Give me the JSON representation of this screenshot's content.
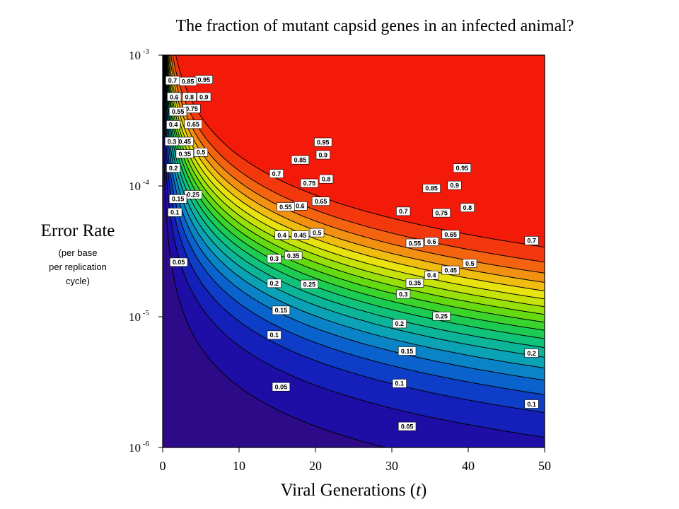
{
  "chart_data": {
    "type": "contour",
    "title": "The fraction of mutant capsid genes in an infected animal?",
    "xlabel_main": "Viral Generations (",
    "xlabel_var": "t",
    "xlabel_end": ")",
    "ylabel": "Error Rate",
    "ylabel_sub": "(per base\nper replication\ncycle)",
    "xlim": [
      0,
      50
    ],
    "ylim": [
      1e-06,
      0.001
    ],
    "y_scale": "log",
    "x_ticks": [
      {
        "value": 0,
        "label": "0"
      },
      {
        "value": 10,
        "label": "10"
      },
      {
        "value": 20,
        "label": "20"
      },
      {
        "value": 30,
        "label": "30"
      },
      {
        "value": 40,
        "label": "40"
      },
      {
        "value": 50,
        "label": "50"
      }
    ],
    "y_ticks": [
      {
        "value": 0.001,
        "base": "10",
        "exp": "-3"
      },
      {
        "value": 0.0001,
        "base": "10",
        "exp": "-4"
      },
      {
        "value": 1e-05,
        "base": "10",
        "exp": "-5"
      },
      {
        "value": 1e-06,
        "base": "10",
        "exp": "-6"
      }
    ],
    "model": "fraction = 1 - exp(-k * t * u)",
    "contour_levels": [
      0.05,
      0.1,
      0.15,
      0.2,
      0.25,
      0.3,
      0.35,
      0.4,
      0.45,
      0.5,
      0.55,
      0.6,
      0.65,
      0.7,
      0.75,
      0.8,
      0.85,
      0.9,
      0.95
    ],
    "level_colors": [
      "#2c0a88",
      "#1e0ea6",
      "#1520bb",
      "#0e3ec8",
      "#0a62cc",
      "#0a84c6",
      "#0aa2b4",
      "#0cb49a",
      "#10c27a",
      "#1ccc52",
      "#3ad42c",
      "#66da10",
      "#98e00a",
      "#c6e208",
      "#e8e20e",
      "#f0bc10",
      "#f29012",
      "#f46410",
      "#f4380e",
      "#f41a0a"
    ],
    "contour_labels": [
      {
        "text": "0.95",
        "x": 5.4,
        "y": 0.00065
      },
      {
        "text": "0.85",
        "x": 3.3,
        "y": 0.00063
      },
      {
        "text": "0.7",
        "x": 1.3,
        "y": 0.00064
      },
      {
        "text": "0.9",
        "x": 5.4,
        "y": 0.00048
      },
      {
        "text": "0.8",
        "x": 3.5,
        "y": 0.00048
      },
      {
        "text": "0.6",
        "x": 1.5,
        "y": 0.00048
      },
      {
        "text": "0.75",
        "x": 3.8,
        "y": 0.00039
      },
      {
        "text": "0.55",
        "x": 2.0,
        "y": 0.00037
      },
      {
        "text": "0.65",
        "x": 4.0,
        "y": 0.000296
      },
      {
        "text": "0.4",
        "x": 1.4,
        "y": 0.000294
      },
      {
        "text": "0.45",
        "x": 2.9,
        "y": 0.000219
      },
      {
        "text": "0.3",
        "x": 1.2,
        "y": 0.000219
      },
      {
        "text": "0.35",
        "x": 2.9,
        "y": 0.000176
      },
      {
        "text": "0.5",
        "x": 5.0,
        "y": 0.000181
      },
      {
        "text": "0.2",
        "x": 1.4,
        "y": 0.000137
      },
      {
        "text": "0.25",
        "x": 4.0,
        "y": 8.57e-05
      },
      {
        "text": "0.15",
        "x": 2.0,
        "y": 7.95e-05
      },
      {
        "text": "0.1",
        "x": 1.6,
        "y": 6.28e-05
      },
      {
        "text": "0.05",
        "x": 2.1,
        "y": 2.61e-05
      },
      {
        "text": "0.95",
        "x": 21.0,
        "y": 0.000216
      },
      {
        "text": "0.9",
        "x": 21.0,
        "y": 0.000173
      },
      {
        "text": "0.85",
        "x": 18.0,
        "y": 0.000158
      },
      {
        "text": "0.8",
        "x": 21.4,
        "y": 0.000113
      },
      {
        "text": "0.75",
        "x": 19.2,
        "y": 0.000105
      },
      {
        "text": "0.7",
        "x": 14.9,
        "y": 0.000124
      },
      {
        "text": "0.65",
        "x": 20.7,
        "y": 7.63e-05
      },
      {
        "text": "0.6",
        "x": 18.0,
        "y": 7.03e-05
      },
      {
        "text": "0.55",
        "x": 16.1,
        "y": 6.93e-05
      },
      {
        "text": "0.5",
        "x": 20.2,
        "y": 4.39e-05
      },
      {
        "text": "0.45",
        "x": 18.0,
        "y": 4.2e-05
      },
      {
        "text": "0.4",
        "x": 15.6,
        "y": 4.2e-05
      },
      {
        "text": "0.35",
        "x": 17.1,
        "y": 2.93e-05
      },
      {
        "text": "0.3",
        "x": 14.6,
        "y": 2.78e-05
      },
      {
        "text": "0.25",
        "x": 19.2,
        "y": 1.77e-05
      },
      {
        "text": "0.2",
        "x": 14.6,
        "y": 1.8e-05
      },
      {
        "text": "0.15",
        "x": 15.5,
        "y": 1.12e-05
      },
      {
        "text": "0.1",
        "x": 14.6,
        "y": 7.24e-06
      },
      {
        "text": "0.05",
        "x": 15.5,
        "y": 2.91e-06
      },
      {
        "text": "0.95",
        "x": 39.2,
        "y": 0.000137
      },
      {
        "text": "0.9",
        "x": 38.2,
        "y": 0.000101
      },
      {
        "text": "0.85",
        "x": 35.2,
        "y": 9.59e-05
      },
      {
        "text": "0.8",
        "x": 39.9,
        "y": 6.82e-05
      },
      {
        "text": "0.75",
        "x": 36.5,
        "y": 6.22e-05
      },
      {
        "text": "0.7",
        "x": 31.5,
        "y": 6.4e-05
      },
      {
        "text": "0.65",
        "x": 37.7,
        "y": 4.26e-05
      },
      {
        "text": "0.6",
        "x": 35.2,
        "y": 3.76e-05
      },
      {
        "text": "0.55",
        "x": 33.0,
        "y": 3.65e-05
      },
      {
        "text": "0.5",
        "x": 40.2,
        "y": 2.56e-05
      },
      {
        "text": "0.45",
        "x": 37.7,
        "y": 2.27e-05
      },
      {
        "text": "0.4",
        "x": 35.2,
        "y": 2.08e-05
      },
      {
        "text": "0.35",
        "x": 33.0,
        "y": 1.81e-05
      },
      {
        "text": "0.3",
        "x": 31.5,
        "y": 1.49e-05
      },
      {
        "text": "0.25",
        "x": 36.5,
        "y": 1.01e-05
      },
      {
        "text": "0.2",
        "x": 31.0,
        "y": 8.84e-06
      },
      {
        "text": "0.15",
        "x": 32.0,
        "y": 5.47e-06
      },
      {
        "text": "0.1",
        "x": 31.0,
        "y": 3.09e-06
      },
      {
        "text": "0.05",
        "x": 32.0,
        "y": 1.45e-06
      },
      {
        "text": "0.7",
        "x": 48.3,
        "y": 3.82e-05
      },
      {
        "text": "0.2",
        "x": 48.3,
        "y": 5.27e-06
      },
      {
        "text": "0.1",
        "x": 48.3,
        "y": 2.15e-06
      }
    ]
  }
}
